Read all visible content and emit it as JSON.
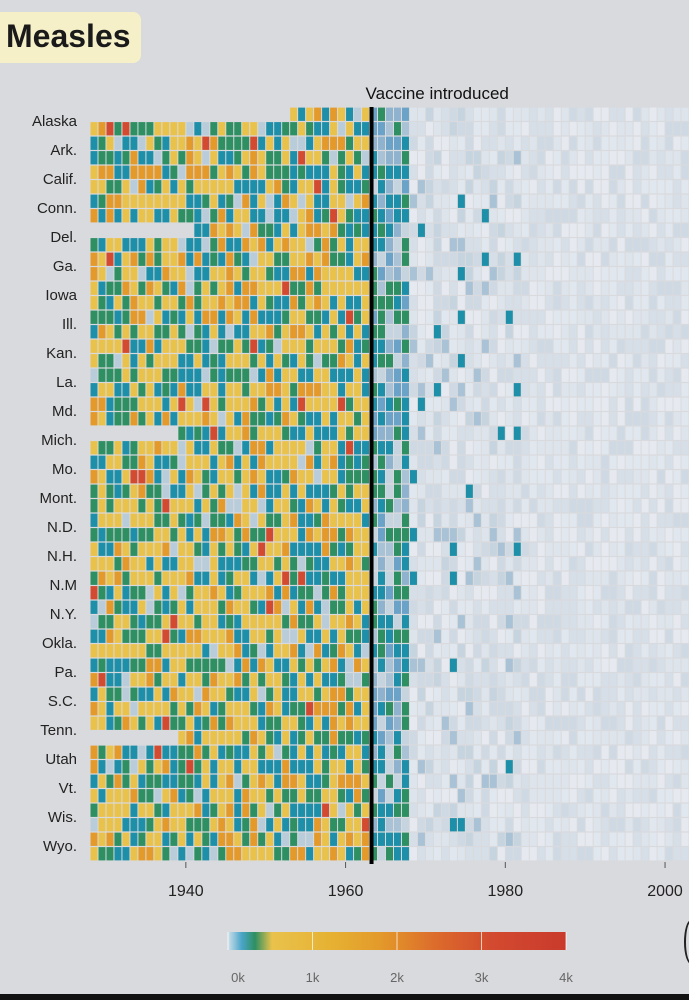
{
  "title": "Measles",
  "chart_data": {
    "type": "heatmap",
    "title": "Measles",
    "annotation": "Vaccine introduced",
    "vaccine_year": 1963,
    "xlim": [
      1928,
      2003
    ],
    "x_ticks": [
      1940,
      1960,
      1980,
      2000
    ],
    "row_labels": [
      "Alaska",
      "Ark.",
      "Calif.",
      "Conn.",
      "Del.",
      "Ga.",
      "Iowa",
      "Ill.",
      "Kan.",
      "La.",
      "Md.",
      "Mich.",
      "Mo.",
      "Mont.",
      "N.D.",
      "N.H.",
      "N.M",
      "N.Y.",
      "Okla.",
      "Pa.",
      "S.C.",
      "Tenn.",
      "Utah",
      "Vt.",
      "Wis.",
      "Wyo."
    ],
    "rows_per_label": 2,
    "legend_ticks": [
      "0k",
      "1k",
      "2k",
      "3k",
      "4k"
    ],
    "legend_range": [
      0,
      4000
    ],
    "colors": {
      "background": "#d9dadd",
      "missing": "#d9dadd",
      "low": "#e3e8ef",
      "teal": "#1e8fa8",
      "green": "#2e8f62",
      "yellow": "#e9c24c",
      "orange": "#e39a2a",
      "red": "#d24a2f"
    }
  }
}
